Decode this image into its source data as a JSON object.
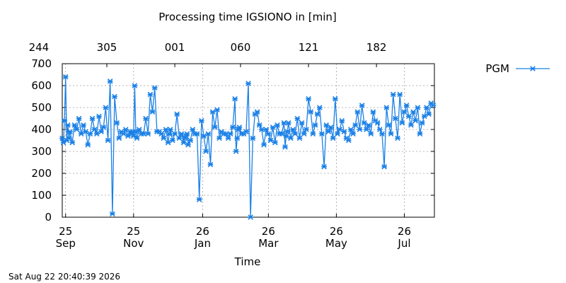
{
  "chart_data": {
    "type": "line",
    "title": "Processing time IGSIONO in [min]",
    "xlabel": "Time",
    "ylabel": "",
    "timestamp": "Sat Aug 22 20:40:39 2026",
    "x_start": "2025-09-22",
    "x_end": "2026-08-22",
    "ylim": [
      0,
      700
    ],
    "yticks": [
      0,
      100,
      200,
      300,
      400,
      500,
      600,
      700
    ],
    "xticks_bottom": [
      {
        "day": "25",
        "month": "Sep",
        "date": "2025-09-25"
      },
      {
        "day": "25",
        "month": "Nov",
        "date": "2025-11-25"
      },
      {
        "day": "26",
        "month": "Jan",
        "date": "2026-01-26"
      },
      {
        "day": "26",
        "month": "Mar",
        "date": "2026-03-26"
      },
      {
        "day": "26",
        "month": "May",
        "date": "2026-05-26"
      },
      {
        "day": "26",
        "month": "Jul",
        "date": "2026-07-26"
      }
    ],
    "xticks_top": [
      {
        "label": "244",
        "date": "2025-09-01"
      },
      {
        "label": "305",
        "date": "2025-11-01"
      },
      {
        "label": "001",
        "date": "2026-01-01"
      },
      {
        "label": "060",
        "date": "2026-03-01"
      },
      {
        "label": "121",
        "date": "2026-05-01"
      },
      {
        "label": "182",
        "date": "2026-07-01"
      }
    ],
    "grid": true,
    "legend_position": "top-right",
    "series": [
      {
        "name": "PGM",
        "color": "#1a80e6",
        "x": [
          "2025-09-22",
          "2025-09-23",
          "2025-09-24",
          "2025-09-25",
          "2025-09-26",
          "2025-09-27",
          "2025-09-28",
          "2025-09-29",
          "2025-10-01",
          "2025-10-03",
          "2025-10-05",
          "2025-10-07",
          "2025-10-09",
          "2025-10-11",
          "2025-10-13",
          "2025-10-15",
          "2025-10-17",
          "2025-10-19",
          "2025-10-21",
          "2025-10-23",
          "2025-10-25",
          "2025-10-27",
          "2025-10-29",
          "2025-10-31",
          "2025-11-02",
          "2025-11-04",
          "2025-11-06",
          "2025-11-08",
          "2025-11-10",
          "2025-11-12",
          "2025-11-14",
          "2025-11-16",
          "2025-11-18",
          "2025-11-20",
          "2025-11-22",
          "2025-11-23",
          "2025-11-24",
          "2025-11-25",
          "2025-11-26",
          "2025-11-27",
          "2025-11-28",
          "2025-11-30",
          "2025-12-02",
          "2025-12-04",
          "2025-12-06",
          "2025-12-08",
          "2025-12-10",
          "2025-12-12",
          "2025-12-14",
          "2025-12-16",
          "2025-12-18",
          "2025-12-20",
          "2025-12-22",
          "2025-12-24",
          "2025-12-26",
          "2025-12-27",
          "2025-12-28",
          "2025-12-30",
          "2026-01-01",
          "2026-01-03",
          "2026-01-05",
          "2026-01-07",
          "2026-01-09",
          "2026-01-10",
          "2026-01-11",
          "2026-01-12",
          "2026-01-13",
          "2026-01-15",
          "2026-01-17",
          "2026-01-19",
          "2026-01-21",
          "2026-01-23",
          "2026-01-25",
          "2026-01-27",
          "2026-01-29",
          "2026-01-31",
          "2026-02-02",
          "2026-02-04",
          "2026-02-06",
          "2026-02-08",
          "2026-02-10",
          "2026-02-12",
          "2026-02-14",
          "2026-02-16",
          "2026-02-18",
          "2026-02-20",
          "2026-02-22",
          "2026-02-24",
          "2026-02-25",
          "2026-02-26",
          "2026-02-27",
          "2026-02-28",
          "2026-03-02",
          "2026-03-04",
          "2026-03-06",
          "2026-03-08",
          "2026-03-10",
          "2026-03-12",
          "2026-03-14",
          "2026-03-16",
          "2026-03-18",
          "2026-03-20",
          "2026-03-22",
          "2026-03-24",
          "2026-03-26",
          "2026-03-28",
          "2026-03-30",
          "2026-04-01",
          "2026-04-03",
          "2026-04-05",
          "2026-04-07",
          "2026-04-09",
          "2026-04-10",
          "2026-04-11",
          "2026-04-12",
          "2026-04-13",
          "2026-04-15",
          "2026-04-17",
          "2026-04-19",
          "2026-04-21",
          "2026-04-23",
          "2026-04-25",
          "2026-04-27",
          "2026-04-29",
          "2026-05-01",
          "2026-05-03",
          "2026-05-05",
          "2026-05-07",
          "2026-05-09",
          "2026-05-11",
          "2026-05-13",
          "2026-05-15",
          "2026-05-17",
          "2026-05-19",
          "2026-05-21",
          "2026-05-23",
          "2026-05-25",
          "2026-05-27",
          "2026-05-29",
          "2026-05-31",
          "2026-06-02",
          "2026-06-04",
          "2026-06-06",
          "2026-06-08",
          "2026-06-10",
          "2026-06-12",
          "2026-06-14",
          "2026-06-16",
          "2026-06-18",
          "2026-06-20",
          "2026-06-22",
          "2026-06-24",
          "2026-06-26",
          "2026-06-28",
          "2026-06-30",
          "2026-07-02",
          "2026-07-04",
          "2026-07-06",
          "2026-07-08",
          "2026-07-10",
          "2026-07-12",
          "2026-07-14",
          "2026-07-16",
          "2026-07-18",
          "2026-07-20",
          "2026-07-22",
          "2026-07-24",
          "2026-07-26",
          "2026-07-28",
          "2026-07-30",
          "2026-08-01",
          "2026-08-03",
          "2026-08-05",
          "2026-08-07",
          "2026-08-09",
          "2026-08-11",
          "2026-08-13",
          "2026-08-15",
          "2026-08-17",
          "2026-08-19",
          "2026-08-21"
        ],
        "y": [
          360,
          340,
          440,
          640,
          350,
          420,
          360,
          390,
          340,
          420,
          400,
          450,
          380,
          420,
          390,
          330,
          380,
          450,
          400,
          380,
          460,
          390,
          410,
          500,
          350,
          620,
          15,
          550,
          430,
          360,
          390,
          380,
          400,
          370,
          390,
          380,
          390,
          370,
          600,
          390,
          360,
          400,
          380,
          380,
          450,
          380,
          560,
          480,
          590,
          390,
          390,
          380,
          360,
          400,
          340,
          380,
          400,
          350,
          380,
          470,
          360,
          380,
          340,
          360,
          370,
          380,
          330,
          350,
          400,
          380,
          380,
          80,
          440,
          370,
          300,
          380,
          240,
          480,
          410,
          490,
          360,
          390,
          380,
          380,
          360,
          380,
          410,
          540,
          300,
          360,
          400,
          410,
          380,
          380,
          390,
          610,
          0,
          360,
          470,
          480,
          420,
          400,
          330,
          400,
          380,
          350,
          410,
          340,
          420,
          380,
          380,
          430,
          320,
          370,
          390,
          430,
          360,
          400,
          380,
          450,
          360,
          430,
          380,
          400,
          540,
          480,
          380,
          420,
          470,
          500,
          380,
          230,
          420,
          390,
          410,
          360,
          540,
          380,
          400,
          440,
          390,
          360,
          350,
          400,
          380,
          420,
          480,
          400,
          510,
          430,
          400,
          420,
          380,
          480,
          440,
          430,
          400,
          380,
          230,
          500,
          420,
          380,
          560,
          450,
          360,
          560,
          430,
          480,
          510,
          460,
          420,
          480,
          440,
          500,
          380,
          430,
          460,
          500,
          470,
          520,
          510
        ]
      }
    ]
  }
}
